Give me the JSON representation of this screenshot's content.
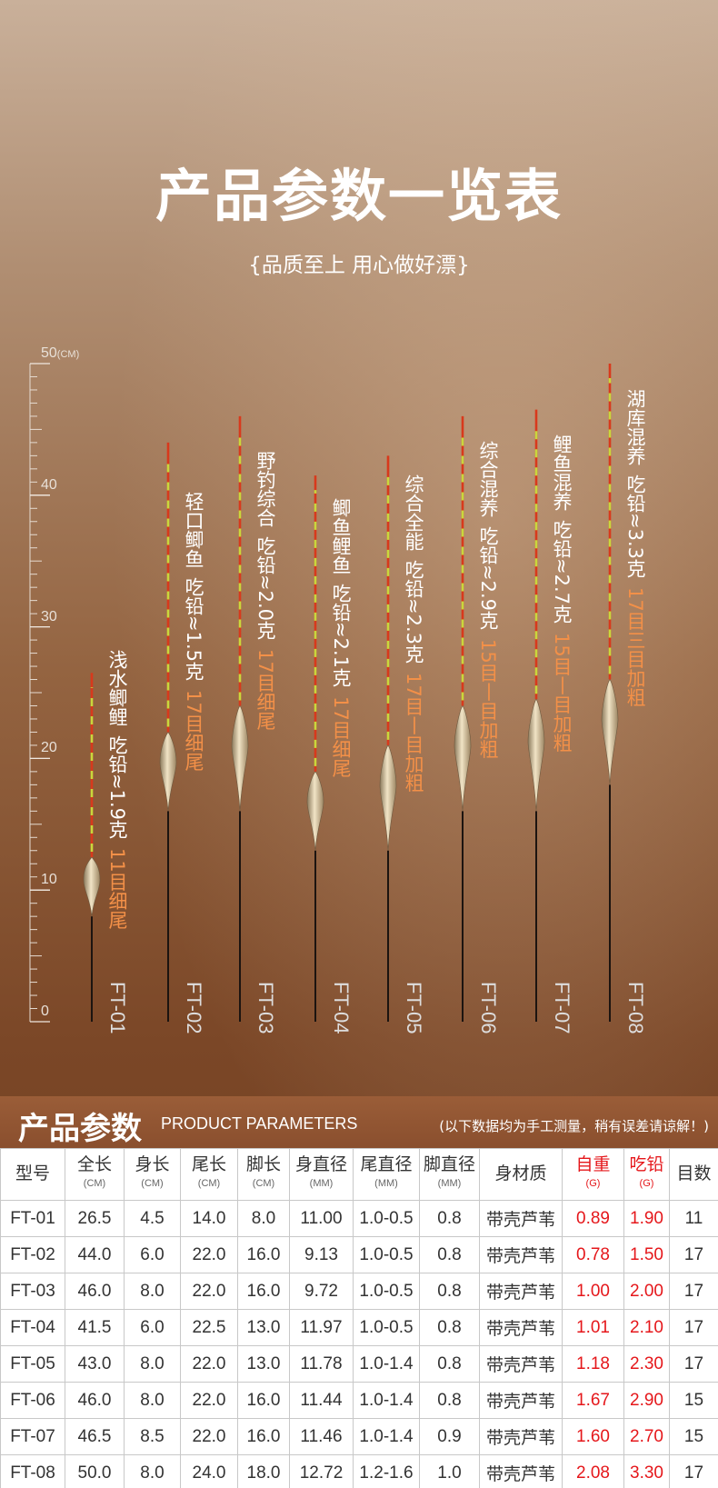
{
  "header": {
    "title": "产品参数一览表",
    "subtitle": "{品质至上 用心做好漂}"
  },
  "ruler": {
    "ticks": [
      0,
      10,
      20,
      30,
      40,
      50
    ],
    "unit": "(CM)"
  },
  "floats": [
    {
      "name": "浅水鲫鲤",
      "lead": "吃铅≈1.9克",
      "tail": "11目细尾"
    },
    {
      "name": "轻口鲫鱼",
      "lead": "吃铅≈1.5克",
      "tail": "17目细尾"
    },
    {
      "name": "野钓综合",
      "lead": "吃铅≈2.0克",
      "tail": "17目细尾"
    },
    {
      "name": "鲫鱼鲤鱼",
      "lead": "吃铅≈2.1克",
      "tail": "17目细尾"
    },
    {
      "name": "综合全能",
      "lead": "吃铅≈2.3克",
      "tail": "17目丨目加粗"
    },
    {
      "name": "综合混养",
      "lead": "吃铅≈2.9克",
      "tail": "15目丨目加粗"
    },
    {
      "name": "鲤鱼混养",
      "lead": "吃铅≈2.7克",
      "tail": "15目丨目加粗"
    },
    {
      "name": "湖库混养",
      "lead": "吃铅≈3.3克",
      "tail": "17目三目加粗"
    }
  ],
  "table": {
    "title": "产品参数",
    "subtitle": "PRODUCT PARAMETERS",
    "note": "(以下数据均为手工测量，稍有误差请谅解！)",
    "columns": [
      {
        "label": "型号"
      },
      {
        "label": "全长",
        "unit": "(CM)"
      },
      {
        "label": "身长",
        "unit": "(CM)"
      },
      {
        "label": "尾长",
        "unit": "(CM)"
      },
      {
        "label": "脚长",
        "unit": "(CM)"
      },
      {
        "label": "身直径",
        "unit": "(MM)"
      },
      {
        "label": "尾直径",
        "unit": "(MM)"
      },
      {
        "label": "脚直径",
        "unit": "(MM)"
      },
      {
        "label": "身材质"
      },
      {
        "label": "自重",
        "unit": "(G)"
      },
      {
        "label": "吃铅",
        "unit": "(G)"
      },
      {
        "label": "目数"
      }
    ],
    "rows": [
      [
        "FT-01",
        "26.5",
        "4.5",
        "14.0",
        "8.0",
        "11.00",
        "1.0-0.5",
        "0.8",
        "带壳芦苇",
        "0.89",
        "1.90",
        "11"
      ],
      [
        "FT-02",
        "44.0",
        "6.0",
        "22.0",
        "16.0",
        "9.13",
        "1.0-0.5",
        "0.8",
        "带壳芦苇",
        "0.78",
        "1.50",
        "17"
      ],
      [
        "FT-03",
        "46.0",
        "8.0",
        "22.0",
        "16.0",
        "9.72",
        "1.0-0.5",
        "0.8",
        "带壳芦苇",
        "1.00",
        "2.00",
        "17"
      ],
      [
        "FT-04",
        "41.5",
        "6.0",
        "22.5",
        "13.0",
        "11.97",
        "1.0-0.5",
        "0.8",
        "带壳芦苇",
        "1.01",
        "2.10",
        "17"
      ],
      [
        "FT-05",
        "43.0",
        "8.0",
        "22.0",
        "13.0",
        "11.78",
        "1.0-1.4",
        "0.8",
        "带壳芦苇",
        "1.18",
        "2.30",
        "17"
      ],
      [
        "FT-06",
        "46.0",
        "8.0",
        "22.0",
        "16.0",
        "11.44",
        "1.0-1.4",
        "0.8",
        "带壳芦苇",
        "1.67",
        "2.90",
        "15"
      ],
      [
        "FT-07",
        "46.5",
        "8.5",
        "22.0",
        "16.0",
        "11.46",
        "1.0-1.4",
        "0.9",
        "带壳芦苇",
        "1.60",
        "2.70",
        "15"
      ],
      [
        "FT-08",
        "50.0",
        "8.0",
        "24.0",
        "18.0",
        "12.72",
        "1.2-1.6",
        "1.0",
        "带壳芦苇",
        "2.08",
        "3.30",
        "17"
      ]
    ]
  }
}
